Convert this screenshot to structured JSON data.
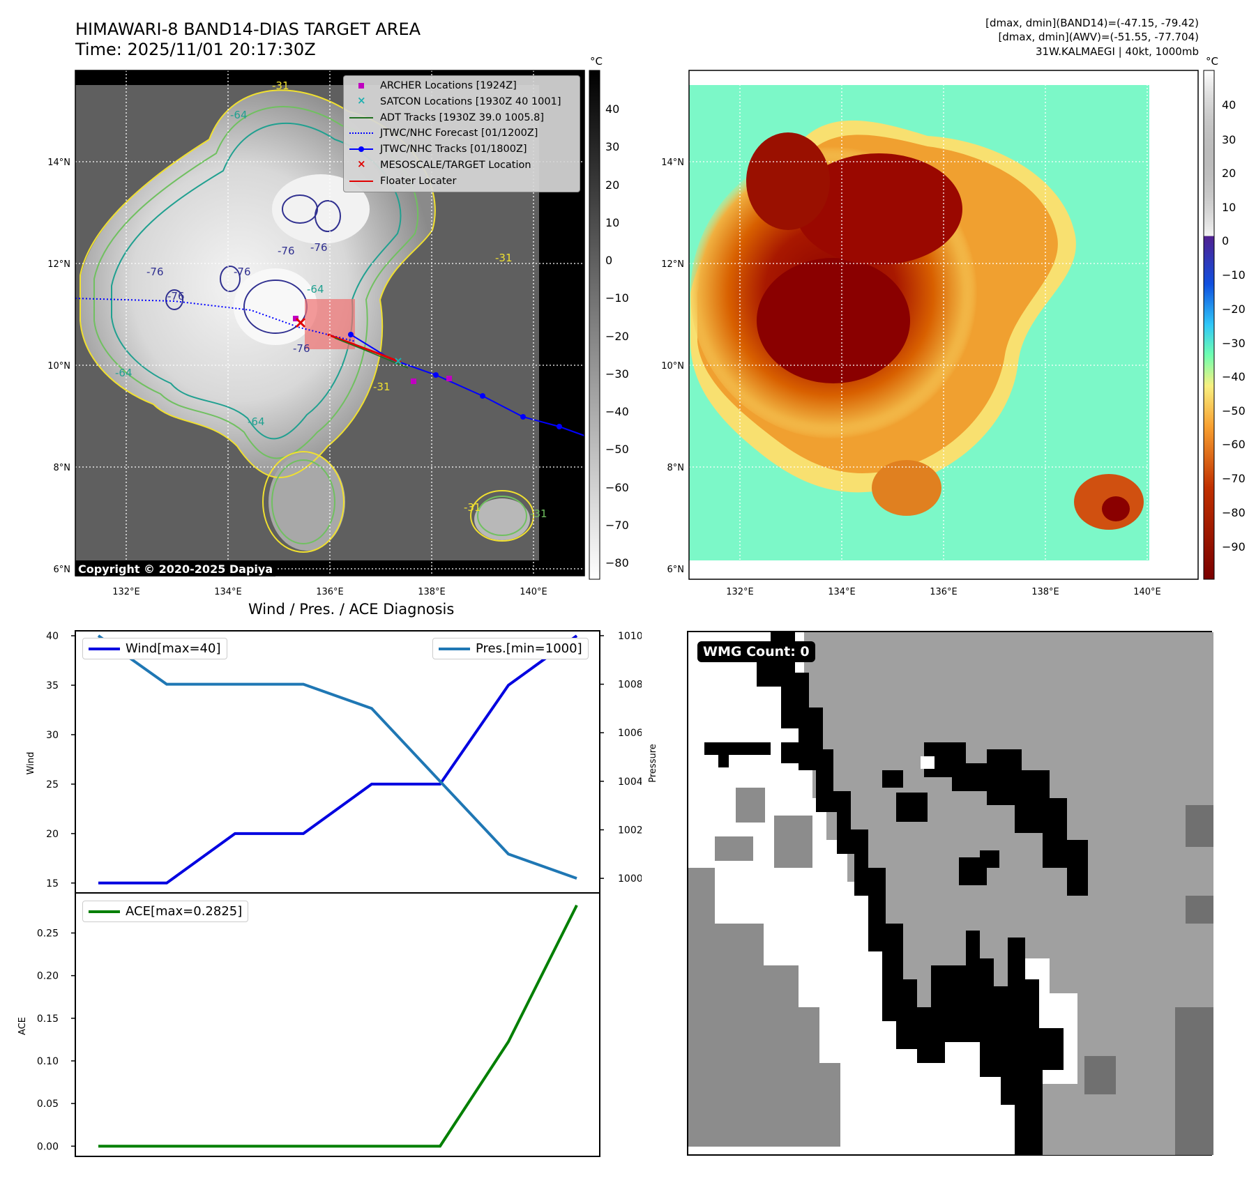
{
  "header": {
    "title_line1": "HIMAWARI-8 BAND14-DIAS TARGET AREA",
    "title_line2": "Time: 2025/11/01 20:17:30Z",
    "info_line1": "[dmax, dmin](BAND14)=(-47.15, -79.42)",
    "info_line2": "[dmax, dmin](AWV)=(-51.55, -77.704)",
    "info_line3": "31W.KALMAEGI | 40kt, 1000mb"
  },
  "map": {
    "lon_ticks": [
      "132°E",
      "134°E",
      "136°E",
      "138°E",
      "140°E"
    ],
    "lat_ticks": [
      "14°N",
      "12°N",
      "10°N",
      "8°N",
      "6°N"
    ],
    "copyright": "Copyright © 2020-2025 Dapiya",
    "contour_labels": [
      "-31",
      "-64",
      "-76",
      "-76",
      "-76",
      "-76",
      "-76",
      "-64",
      "-64",
      "-31",
      "-31",
      "-31",
      "-31",
      "-76",
      "-64"
    ]
  },
  "legend": {
    "items": [
      {
        "label": "ARCHER Locations [1924Z]",
        "color": "#c000c0",
        "marker": "square"
      },
      {
        "label": "SATCON Locations [1930Z 40 1001]",
        "color": "#20b0b0",
        "marker": "x"
      },
      {
        "label": "ADT Tracks [1930Z 39.0 1005.8]",
        "color": "#207020",
        "marker": "line"
      },
      {
        "label": "JTWC/NHC Forecast [01/1200Z]",
        "color": "#0000ff",
        "marker": "dotted"
      },
      {
        "label": "JTWC/NHC Tracks [01/1800Z]",
        "color": "#0000ff",
        "marker": "line-dot"
      },
      {
        "label": "MESOSCALE/TARGET Location",
        "color": "#e00000",
        "marker": "x"
      },
      {
        "label": "Floater Locater",
        "color": "#e00000",
        "marker": "line"
      }
    ]
  },
  "colorbar_left": {
    "unit": "°C",
    "ticks": [
      "40",
      "30",
      "20",
      "10",
      "0",
      "−10",
      "−20",
      "−30",
      "−40",
      "−50",
      "−60",
      "−70",
      "−80"
    ]
  },
  "colorbar_right": {
    "unit": "°C",
    "ticks": [
      "40",
      "30",
      "20",
      "10",
      "0",
      "−10",
      "−20",
      "−30",
      "−40",
      "−50",
      "−60",
      "−70",
      "−80",
      "−90"
    ]
  },
  "chart_data": [
    {
      "type": "line",
      "title": "Wind / Pres. / ACE Diagnosis",
      "ylabel": "Wind",
      "y2label": "Pressure",
      "ylim": [
        14,
        40.5
      ],
      "y2lim": [
        999.4,
        1010.2
      ],
      "yticks": [
        15,
        20,
        25,
        30,
        35,
        40
      ],
      "y2ticks": [
        1000,
        1002,
        1004,
        1006,
        1008,
        1010
      ],
      "series": [
        {
          "name": "Wind[max=40]",
          "color": "#0000e0",
          "axis": "left",
          "values": [
            15,
            15,
            20,
            20,
            25,
            25,
            35,
            40
          ]
        },
        {
          "name": "Pres.[min=1000]",
          "color": "#1f77b4",
          "axis": "right",
          "values": [
            1010,
            1008,
            1008,
            1008,
            1007,
            1004,
            1001,
            1000
          ]
        }
      ]
    },
    {
      "type": "line",
      "ylabel": "ACE",
      "ylim": [
        -0.012,
        0.297
      ],
      "yticks": [
        "0.00",
        "0.05",
        "0.10",
        "0.15",
        "0.20",
        "0.25"
      ],
      "series": [
        {
          "name": "ACE[max=0.2825]",
          "color": "#007f00",
          "values": [
            0,
            0,
            0,
            0,
            0,
            0,
            0.1225,
            0.2825
          ]
        }
      ]
    }
  ],
  "wmg": {
    "label": "WMG Count: 0"
  }
}
